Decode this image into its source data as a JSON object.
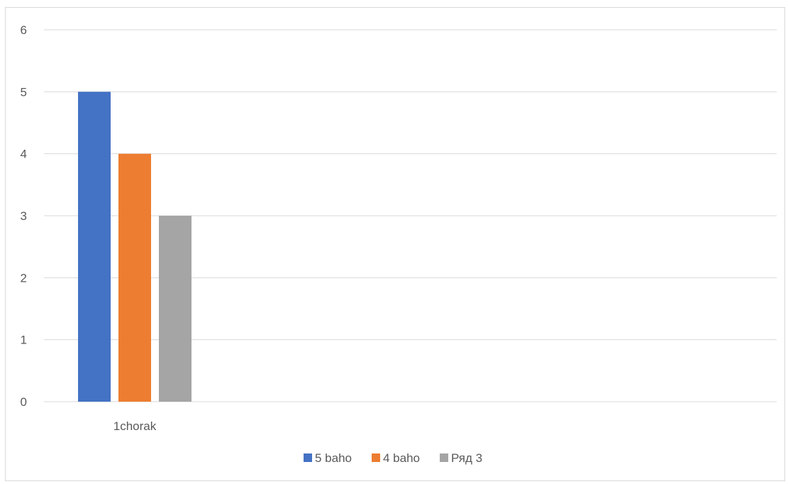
{
  "chart_data": {
    "type": "bar",
    "categories": [
      "1chorak"
    ],
    "series": [
      {
        "name": "5 baho",
        "values": [
          5
        ],
        "color": "#4472C4"
      },
      {
        "name": "4 baho",
        "values": [
          4
        ],
        "color": "#ED7D31"
      },
      {
        "name": "Ряд 3",
        "values": [
          3
        ],
        "color": "#A5A5A5"
      }
    ],
    "ylim": [
      0,
      6
    ],
    "yticks": [
      0,
      1,
      2,
      3,
      4,
      5,
      6
    ],
    "grid": true,
    "legend_position": "bottom"
  }
}
